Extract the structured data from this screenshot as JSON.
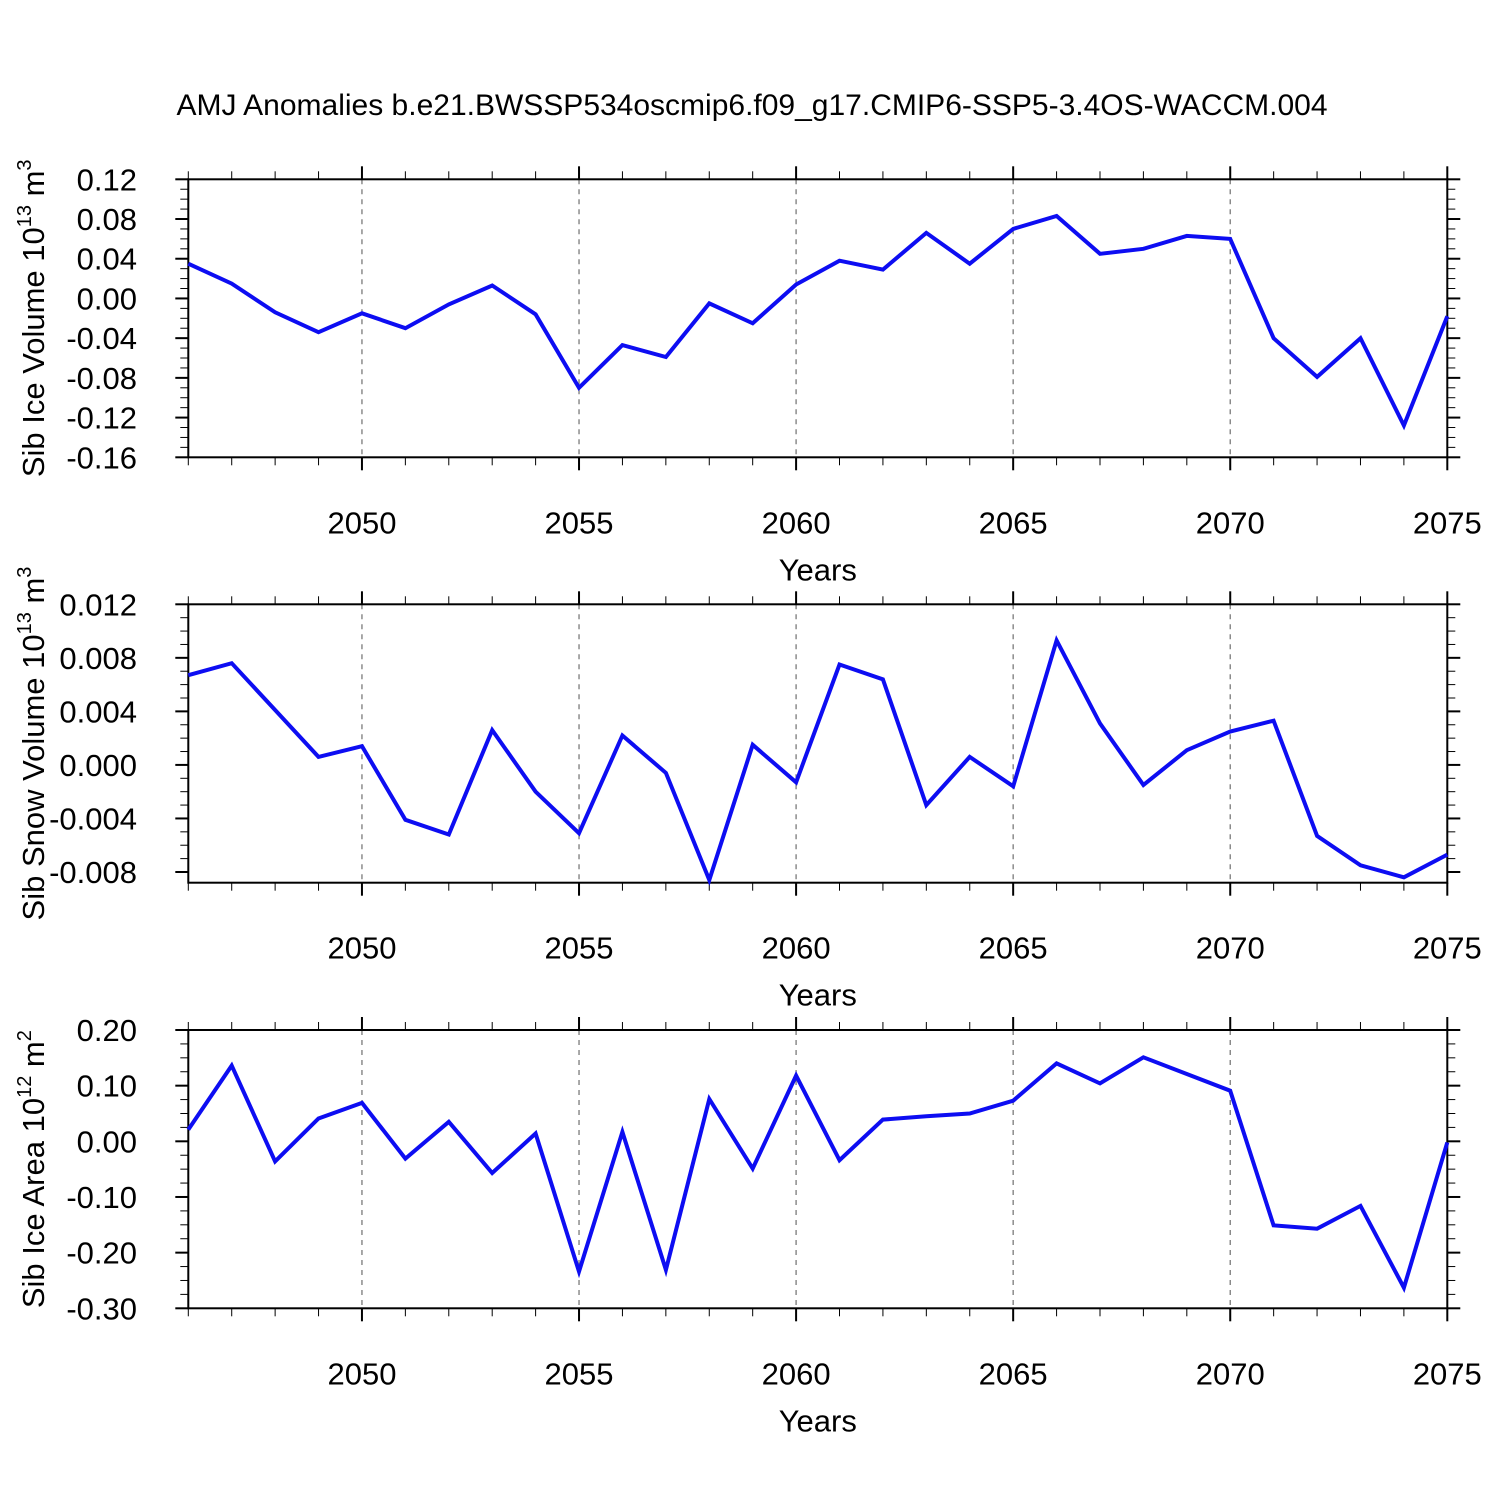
{
  "title": "AMJ Anomalies b.e21.BWSSP534oscmip6.f09_g17.CMIP6-SSP5-3.4OS-WACCM.004",
  "x_axis": {
    "label": "Years",
    "range": [
      2046,
      2075
    ],
    "major_ticks": [
      2050,
      2055,
      2060,
      2065,
      2070,
      2075
    ],
    "gridline_years": [
      2050,
      2055,
      2060,
      2065,
      2070
    ]
  },
  "colors": {
    "line": "#0d0df2",
    "gridline": "#7a7a7a",
    "axis": "#000000",
    "text": "#000000",
    "background": "#ffffff"
  },
  "chart_data": [
    {
      "type": "line",
      "panel": 1,
      "ylabel_text": "Sib Ice Volume 10^13 m^3",
      "ylabel_parts": {
        "base": "Sib Ice Volume 10",
        "exp": "13",
        "unit": " m",
        "unit_exp": "3"
      },
      "xlabel": "Years",
      "ylim": [
        -0.16,
        0.12
      ],
      "ytick_step": 0.04,
      "yminor_step": 0.01,
      "ytick_labels": [
        "0.12",
        "0.08",
        "0.04",
        "0.00",
        "-0.04",
        "-0.08",
        "-0.12",
        "-0.16"
      ],
      "grid": "vertical-dashed",
      "legend": "none",
      "x": [
        2046,
        2047,
        2048,
        2049,
        2050,
        2051,
        2052,
        2053,
        2054,
        2055,
        2056,
        2057,
        2058,
        2059,
        2060,
        2061,
        2062,
        2063,
        2064,
        2065,
        2066,
        2067,
        2068,
        2069,
        2070,
        2071,
        2072,
        2073,
        2074,
        2075
      ],
      "values": [
        0.035,
        0.015,
        -0.014,
        -0.034,
        -0.015,
        -0.03,
        -0.006,
        0.013,
        -0.016,
        -0.09,
        -0.047,
        -0.059,
        -0.005,
        -0.025,
        0.014,
        0.038,
        0.029,
        0.066,
        0.035,
        0.07,
        0.083,
        0.045,
        0.05,
        0.063,
        0.06,
        -0.04,
        -0.079,
        -0.04,
        -0.128,
        -0.018
      ]
    },
    {
      "type": "line",
      "panel": 2,
      "ylabel_text": "Sib Snow Volume 10^13 m^3",
      "ylabel_parts": {
        "base": "Sib Snow Volume 10",
        "exp": "13",
        "unit": " m",
        "unit_exp": "3"
      },
      "xlabel": "Years",
      "ylim": [
        -0.0088,
        0.012
      ],
      "ytick_step": 0.004,
      "yminor_step": 0.001,
      "ytick_labels": [
        "0.012",
        "0.008",
        "0.004",
        "0.000",
        "-0.004",
        "-0.008"
      ],
      "grid": "vertical-dashed",
      "legend": "none",
      "x": [
        2046,
        2047,
        2048,
        2049,
        2050,
        2051,
        2052,
        2053,
        2054,
        2055,
        2056,
        2057,
        2058,
        2059,
        2060,
        2061,
        2062,
        2063,
        2064,
        2065,
        2066,
        2067,
        2068,
        2069,
        2070,
        2071,
        2072,
        2073,
        2074,
        2075
      ],
      "values": [
        0.0067,
        0.0076,
        0.0041,
        0.0006,
        0.0014,
        -0.0041,
        -0.0052,
        0.0026,
        -0.002,
        -0.0051,
        0.0022,
        -0.0006,
        -0.0086,
        0.0015,
        -0.0013,
        0.0075,
        0.0064,
        -0.003,
        0.0006,
        -0.0016,
        0.0093,
        0.0031,
        -0.0015,
        0.0011,
        0.0025,
        0.0033,
        -0.0053,
        -0.0075,
        -0.0084,
        -0.0067
      ]
    },
    {
      "type": "line",
      "panel": 3,
      "ylabel_text": "Sib Ice Area 10^12 m^2",
      "ylabel_parts": {
        "base": "Sib Ice Area 10",
        "exp": "12",
        "unit": " m",
        "unit_exp": "2"
      },
      "xlabel": "Years",
      "ylim": [
        -0.3,
        0.2
      ],
      "ytick_step": 0.1,
      "yminor_step": 0.025,
      "ytick_labels": [
        "0.20",
        "0.10",
        "0.00",
        "-0.10",
        "-0.20",
        "-0.30"
      ],
      "grid": "vertical-dashed",
      "legend": "none",
      "x": [
        2046,
        2047,
        2048,
        2049,
        2050,
        2051,
        2052,
        2053,
        2054,
        2055,
        2056,
        2057,
        2058,
        2059,
        2060,
        2061,
        2062,
        2063,
        2064,
        2065,
        2066,
        2067,
        2068,
        2069,
        2070,
        2071,
        2072,
        2073,
        2074,
        2075
      ],
      "values": [
        0.021,
        0.136,
        -0.036,
        0.041,
        0.069,
        -0.031,
        0.035,
        -0.057,
        0.014,
        -0.234,
        0.017,
        -0.231,
        0.076,
        -0.049,
        0.118,
        -0.034,
        0.039,
        0.045,
        0.05,
        0.073,
        0.14,
        0.104,
        0.151,
        0.121,
        0.091,
        -0.151,
        -0.157,
        -0.116,
        -0.263,
        -0.002
      ]
    }
  ]
}
